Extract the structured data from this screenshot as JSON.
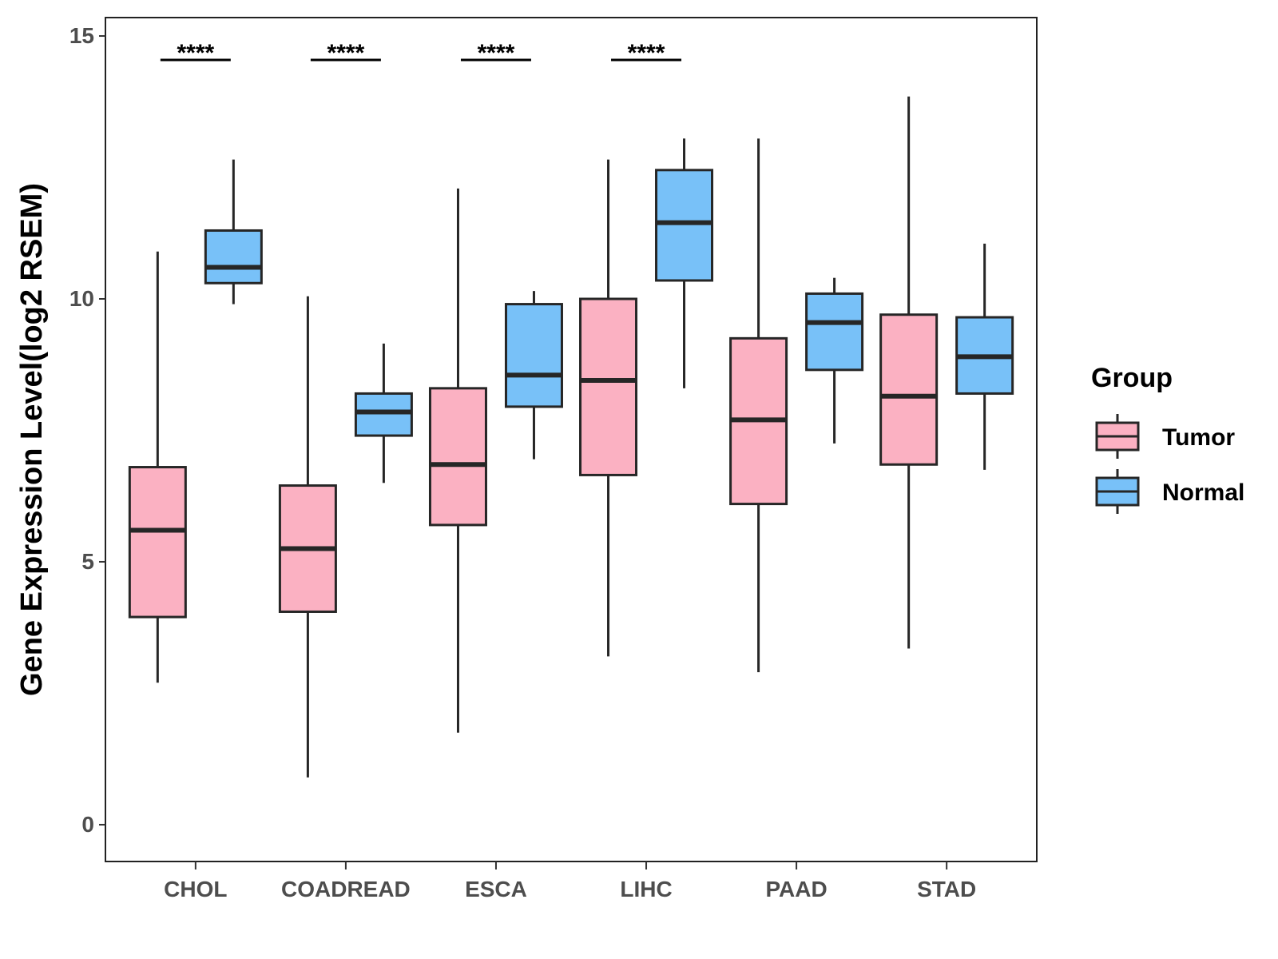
{
  "chart_data": {
    "type": "boxplot",
    "title": "",
    "xlabel": "",
    "ylabel": "Gene Expression Level(log2 RSEM)",
    "ylim": [
      -0.7,
      15.35
    ],
    "yticks": [
      0,
      5,
      10,
      15
    ],
    "ytick_labels": [
      "0",
      "5",
      "10",
      "15"
    ],
    "categories": [
      "CHOL",
      "COADREAD",
      "ESCA",
      "LIHC",
      "PAAD",
      "STAD"
    ],
    "grid": false,
    "legend": {
      "title": "Group",
      "position": "right",
      "entries": [
        {
          "name": "Tumor",
          "color": "#FBB1C2"
        },
        {
          "name": "Normal",
          "color": "#78C1F8"
        }
      ]
    },
    "series": [
      {
        "name": "Tumor",
        "color": "#FBB1C2",
        "boxes": [
          {
            "category": "CHOL",
            "min": 2.7,
            "q1": 3.95,
            "median": 5.6,
            "q3": 6.8,
            "max": 10.9
          },
          {
            "category": "COADREAD",
            "min": 0.9,
            "q1": 4.05,
            "median": 5.25,
            "q3": 6.45,
            "max": 10.05
          },
          {
            "category": "ESCA",
            "min": 1.75,
            "q1": 5.7,
            "median": 6.85,
            "q3": 8.3,
            "max": 12.1
          },
          {
            "category": "LIHC",
            "min": 3.2,
            "q1": 6.65,
            "median": 8.45,
            "q3": 10.0,
            "max": 12.65
          },
          {
            "category": "PAAD",
            "min": 2.9,
            "q1": 6.1,
            "median": 7.7,
            "q3": 9.25,
            "max": 13.05
          },
          {
            "category": "STAD",
            "min": 3.35,
            "q1": 6.85,
            "median": 8.15,
            "q3": 9.7,
            "max": 13.85
          }
        ]
      },
      {
        "name": "Normal",
        "color": "#78C1F8",
        "boxes": [
          {
            "category": "CHOL",
            "min": 9.9,
            "q1": 10.3,
            "median": 10.6,
            "q3": 11.3,
            "max": 12.65
          },
          {
            "category": "COADREAD",
            "min": 6.5,
            "q1": 7.4,
            "median": 7.85,
            "q3": 8.2,
            "max": 9.15
          },
          {
            "category": "ESCA",
            "min": 6.95,
            "q1": 7.95,
            "median": 8.55,
            "q3": 9.9,
            "max": 10.15
          },
          {
            "category": "LIHC",
            "min": 8.3,
            "q1": 10.35,
            "median": 11.45,
            "q3": 12.45,
            "max": 13.05
          },
          {
            "category": "PAAD",
            "min": 7.25,
            "q1": 8.65,
            "median": 9.55,
            "q3": 10.1,
            "max": 10.4
          },
          {
            "category": "STAD",
            "min": 6.75,
            "q1": 8.2,
            "median": 8.9,
            "q3": 9.65,
            "max": 11.05
          }
        ]
      }
    ],
    "significance": [
      {
        "category": "CHOL",
        "label": "****"
      },
      {
        "category": "COADREAD",
        "label": "****"
      },
      {
        "category": "ESCA",
        "label": "****"
      },
      {
        "category": "LIHC",
        "label": "****"
      }
    ]
  }
}
